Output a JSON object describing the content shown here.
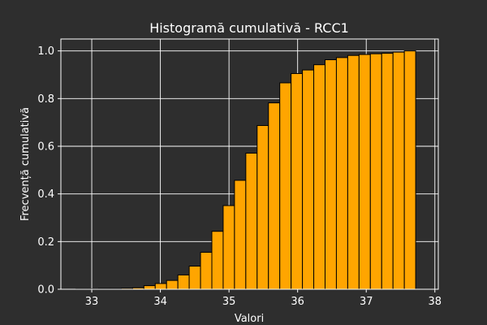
{
  "chart_data": {
    "type": "bar",
    "title": "Histogramă cumulativă - RCC1",
    "xlabel": "Valori",
    "ylabel": "Frecvență cumulativă",
    "xlim": [
      32.55,
      38.05
    ],
    "ylim": [
      0,
      1.05
    ],
    "xticks": [
      33,
      34,
      35,
      36,
      37,
      38
    ],
    "yticks": [
      0.0,
      0.2,
      0.4,
      0.6,
      0.8,
      1.0
    ],
    "grid": true,
    "bar_color": "#ffa500",
    "edge_color": "#000000",
    "background": "#2e2e2e",
    "bin_edges": [
      32.77,
      32.935,
      33.1,
      33.265,
      33.43,
      33.595,
      33.76,
      33.925,
      34.09,
      34.255,
      34.42,
      34.585,
      34.75,
      34.915,
      35.08,
      35.245,
      35.41,
      35.575,
      35.74,
      35.905,
      36.07,
      36.235,
      36.4,
      36.565,
      36.73,
      36.895,
      37.06,
      37.225,
      37.39,
      37.555,
      37.72
    ],
    "values": [
      0.002,
      0.002,
      0.003,
      0.003,
      0.004,
      0.006,
      0.015,
      0.024,
      0.037,
      0.06,
      0.097,
      0.155,
      0.243,
      0.351,
      0.457,
      0.571,
      0.687,
      0.782,
      0.866,
      0.905,
      0.92,
      0.942,
      0.963,
      0.972,
      0.981,
      0.985,
      0.988,
      0.99,
      0.995,
      1.0
    ]
  }
}
